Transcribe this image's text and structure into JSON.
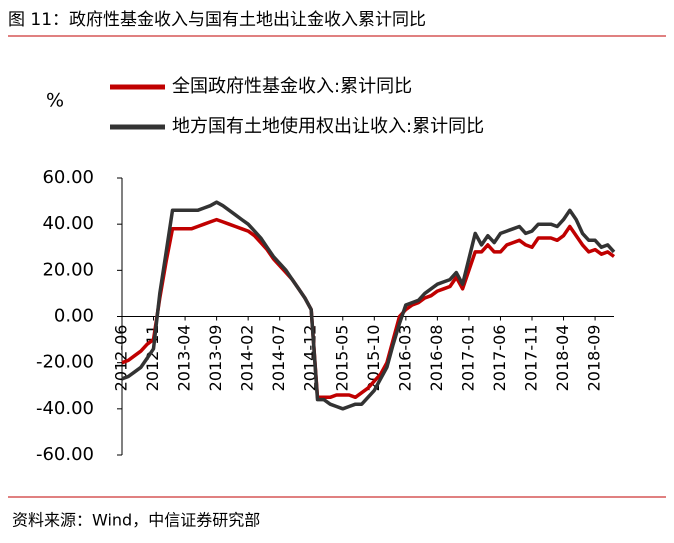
{
  "figure_title": "图 11：政府性基金收入与国有土地出让金收入累计同比",
  "source": "资料来源：Wind，中信证券研究部",
  "chart_data": {
    "type": "line",
    "y_unit_label": "%",
    "categories": [
      "2012-06",
      null,
      null,
      null,
      null,
      "2012-11",
      null,
      null,
      null,
      null,
      "2013-04",
      null,
      null,
      null,
      null,
      "2013-09",
      null,
      null,
      null,
      null,
      "2014-02",
      null,
      null,
      null,
      null,
      "2014-07",
      null,
      null,
      null,
      null,
      "2014-12",
      null,
      null,
      null,
      null,
      "2015-05",
      null,
      null,
      null,
      null,
      "2015-10",
      null,
      null,
      null,
      null,
      "2016-03",
      null,
      null,
      null,
      null,
      "2016-08",
      null,
      null,
      null,
      null,
      "2017-01",
      null,
      null,
      null,
      null,
      "2017-06",
      null,
      null,
      null,
      null,
      "2017-11",
      null,
      null,
      null,
      null,
      "2018-04",
      null,
      null,
      null,
      null,
      "2018-09",
      null,
      null,
      null
    ],
    "series": [
      {
        "name": "全国政府性基金收入:累计同比",
        "color": "#c00000",
        "values": [
          -20,
          -19,
          -17,
          -15,
          -12,
          -10,
          8,
          24,
          38,
          38,
          38,
          38,
          39,
          40,
          41,
          42,
          41,
          40,
          39,
          38,
          37,
          35,
          32,
          29,
          25,
          22,
          19,
          16,
          12,
          8,
          3,
          -35,
          -35,
          -35,
          -34,
          -34,
          -34,
          -35,
          -33,
          -31,
          -28,
          -25,
          -20,
          -10,
          0,
          3,
          5,
          6,
          8,
          9,
          11,
          12,
          13,
          17,
          12,
          20,
          28,
          28,
          31,
          28,
          28,
          31,
          32,
          33,
          31,
          30,
          34,
          34,
          34,
          33,
          35,
          39,
          35,
          31,
          28,
          29,
          27,
          28,
          26
        ]
      },
      {
        "name": "地方国有土地使用权出让收入:累计同比",
        "color": "#333333",
        "values": [
          -27,
          -26,
          -24,
          -22,
          -18,
          -14,
          10,
          28,
          46,
          46,
          46,
          46,
          46,
          47,
          48,
          49.5,
          48,
          46,
          44,
          42,
          40,
          37,
          34,
          30,
          26,
          23,
          20,
          16,
          12,
          8,
          3,
          -36,
          -36,
          -38,
          -39,
          -40,
          -39,
          -38,
          -38,
          -35,
          -32,
          -27,
          -22,
          -12,
          -3,
          5,
          6,
          7,
          10,
          12,
          14,
          15,
          16,
          19,
          14,
          25,
          36,
          31,
          35,
          32,
          36,
          37,
          38,
          39,
          36,
          37,
          40,
          40,
          40,
          39,
          42,
          46,
          42,
          36,
          33,
          33,
          30,
          31,
          28
        ]
      }
    ],
    "ylim": [
      -60,
      60
    ],
    "yticks": [
      {
        "value": -60,
        "label": "-60.00"
      },
      {
        "value": -40,
        "label": "-40.00"
      },
      {
        "value": -20,
        "label": "-20.00"
      },
      {
        "value": 0,
        "label": "0.00"
      },
      {
        "value": 20,
        "label": "20.00"
      },
      {
        "value": 40,
        "label": "40.00"
      },
      {
        "value": 60,
        "label": "60.00"
      }
    ],
    "grid": false,
    "legend": "top"
  }
}
